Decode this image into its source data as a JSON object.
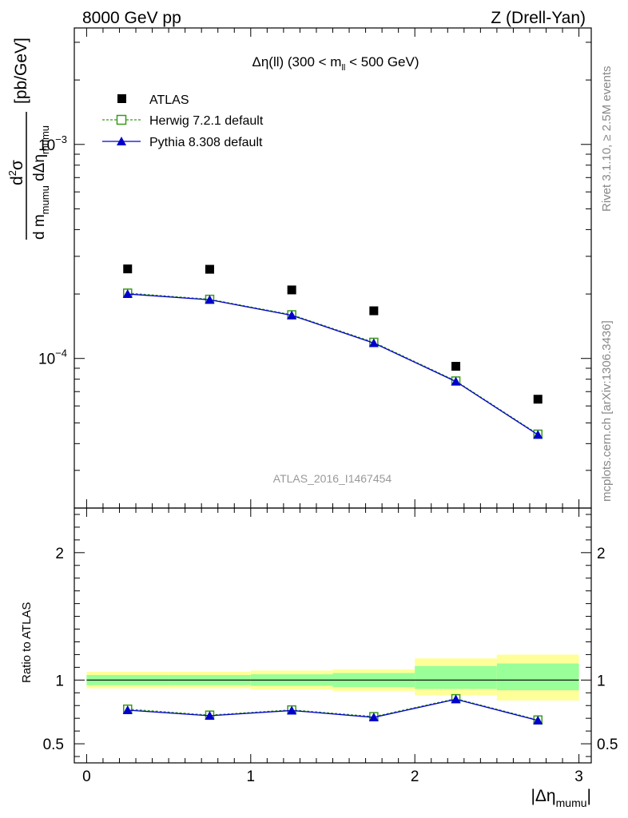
{
  "header": {
    "left": "8000 GeV pp",
    "right": "Z (Drell-Yan)"
  },
  "side_labels": {
    "rivet": "Rivet 3.1.10, ≥ 2.5M events",
    "mcplots": "mcplots.cern.ch [arXiv:1306.3436]"
  },
  "main_title": {
    "prefix": "Δη(ll) (300 < m",
    "sub": "ll",
    "suffix": " < 500 GeV)"
  },
  "watermark": "ATLAS_2016_I1467454",
  "y_label_main": {
    "units": "[pb/GeV]",
    "num_pre": "d",
    "num_sup": "2",
    "num_post": "σ",
    "den_a": "d m",
    "den_a_sub": "mumu",
    "den_b": " dΔη",
    "den_b_sub": "mumu"
  },
  "y_label_ratio": "Ratio to ATLAS",
  "x_label": {
    "main": "|Δη",
    "sub": "mumu",
    "close": "|"
  },
  "colors": {
    "data": "#000000",
    "herwig": "#3a9a1a",
    "pythia": "#0000cc",
    "band_inner": "#99ff99",
    "band_outer": "#ffff99"
  },
  "chart_data": [
    {
      "type": "line",
      "panel": "main",
      "xlim": [
        -0.075,
        3.075
      ],
      "ylim": [
        2e-05,
        0.0035
      ],
      "yscale": "log",
      "yticks": [
        {
          "value": 0.0001,
          "base": "10",
          "exp": "−4"
        },
        {
          "value": 0.001,
          "base": "10",
          "exp": "−3"
        }
      ],
      "legend_position": "top-left",
      "series": [
        {
          "name": "ATLAS",
          "kind": "data",
          "x": [
            0.25,
            0.75,
            1.25,
            1.75,
            2.25,
            2.75
          ],
          "y": [
            0.000262,
            0.000261,
            0.000209,
            0.000167,
            9.19e-05,
            6.45e-05
          ]
        },
        {
          "name": "Herwig 7.2.1 default",
          "kind": "herwig",
          "x": [
            0.25,
            0.75,
            1.25,
            1.75,
            2.25,
            2.75
          ],
          "y": [
            0.000202,
            0.000189,
            0.00016,
            0.000119,
            7.85e-05,
            4.43e-05
          ]
        },
        {
          "name": "Pythia 8.308 default",
          "kind": "pythia",
          "x": [
            0.25,
            0.75,
            1.25,
            1.75,
            2.25,
            2.75
          ],
          "y": [
            0.0002,
            0.000188,
            0.000159,
            0.000118,
            7.8e-05,
            4.4e-05
          ]
        }
      ]
    },
    {
      "type": "line",
      "panel": "ratio",
      "xlim": [
        -0.075,
        3.075
      ],
      "ylim": [
        0.35,
        2.35
      ],
      "yticks": [
        0.5,
        1,
        2
      ],
      "xticks": [
        0,
        1,
        2,
        3
      ],
      "bins": [
        [
          0,
          0.5
        ],
        [
          0.5,
          1
        ],
        [
          1,
          1.5
        ],
        [
          1.5,
          2
        ],
        [
          2,
          2.5
        ],
        [
          2.5,
          3
        ]
      ],
      "band_inner": [
        [
          0.96,
          1.04
        ],
        [
          0.96,
          1.04
        ],
        [
          0.955,
          1.045
        ],
        [
          0.945,
          1.055
        ],
        [
          0.93,
          1.11
        ],
        [
          0.92,
          1.13
        ]
      ],
      "band_outer": [
        [
          0.935,
          1.065
        ],
        [
          0.935,
          1.065
        ],
        [
          0.925,
          1.075
        ],
        [
          0.915,
          1.085
        ],
        [
          0.88,
          1.17
        ],
        [
          0.84,
          1.2
        ]
      ],
      "series": [
        {
          "name": "Herwig 7.2.1 default",
          "kind": "herwig",
          "x": [
            0.25,
            0.75,
            1.25,
            1.75,
            2.25,
            2.75
          ],
          "y": [
            0.772,
            0.725,
            0.766,
            0.713,
            0.854,
            0.687
          ]
        },
        {
          "name": "Pythia 8.308 default",
          "kind": "pythia",
          "x": [
            0.25,
            0.75,
            1.25,
            1.75,
            2.25,
            2.75
          ],
          "y": [
            0.764,
            0.72,
            0.761,
            0.707,
            0.849,
            0.683
          ]
        }
      ]
    }
  ]
}
